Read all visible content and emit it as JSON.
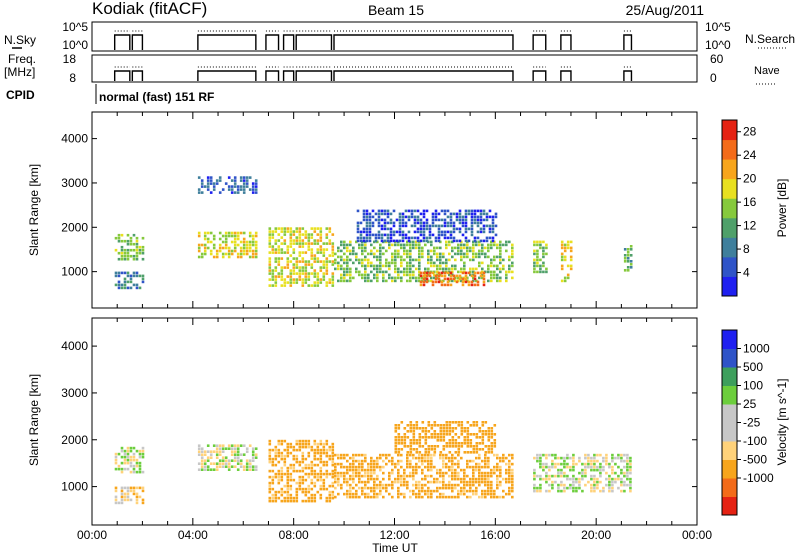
{
  "header": {
    "station": "Kodiak (fitACF)",
    "beam": "Beam 15",
    "date": "25/Aug/2011"
  },
  "noise_panel": {
    "left_label": "N.Sky",
    "right_label": "N.Search",
    "left_ticks": [
      "10^5",
      "10^0"
    ],
    "right_ticks": [
      "10^5",
      "10^0"
    ]
  },
  "freq_panel": {
    "left_label_1": "Freq.",
    "left_label_2": "[MHz]",
    "right_label": "Nave",
    "left_ticks": [
      "18",
      "8"
    ],
    "right_ticks": [
      "60",
      "0"
    ]
  },
  "cpid": {
    "label": "CPID",
    "value": "normal (fast) 151 RF"
  },
  "time_axis": {
    "label": "Time UT",
    "ticks": [
      "00:00",
      "04:00",
      "08:00",
      "12:00",
      "16:00",
      "20:00",
      "00:00"
    ]
  },
  "colors": {
    "power": [
      "#1f20f0",
      "#2f54c8",
      "#3f7f9c",
      "#4fa06a",
      "#86c93c",
      "#e8e020",
      "#f7a51c",
      "#f36b19",
      "#e52213"
    ],
    "velocity": [
      "#e52213",
      "#f36b19",
      "#f7a51c",
      "#ffd27a",
      "#c7c7c7",
      "#c7c7c7",
      "#6cce3c",
      "#3d9f5c",
      "#2f54c8",
      "#1f20f0"
    ]
  },
  "chart_data": [
    {
      "type": "heatmap",
      "title": "",
      "ylabel": "Slant Range [km]",
      "xlabel": "",
      "ylim": [
        180,
        4600
      ],
      "xlim": [
        0,
        24
      ],
      "yticks": [
        "1000",
        "2000",
        "3000",
        "4000"
      ],
      "xticks": [
        "00:00",
        "04:00",
        "08:00",
        "12:00",
        "16:00",
        "20:00",
        "00:00"
      ],
      "colorbar": {
        "label": "Power [dB]",
        "ticks": [
          "4",
          "8",
          "12",
          "16",
          "20",
          "24",
          "28"
        ],
        "range": [
          0,
          30
        ]
      },
      "data_intervals_hours": [
        [
          0.9,
          1.5
        ],
        [
          1.6,
          2.0
        ],
        [
          4.2,
          6.5
        ],
        [
          6.9,
          7.4
        ],
        [
          7.6,
          8.0
        ],
        [
          8.1,
          9.5
        ],
        [
          9.6,
          16.7
        ],
        [
          17.5,
          18.0
        ],
        [
          18.6,
          19.0
        ],
        [
          21.1,
          21.4
        ]
      ],
      "echo_regions": [
        {
          "t_start": 0.9,
          "t_end": 2.0,
          "range_min_km": 1300,
          "range_max_km": 1850,
          "power_db": 14
        },
        {
          "t_start": 0.9,
          "t_end": 2.0,
          "range_min_km": 650,
          "range_max_km": 1000,
          "power_db": 9
        },
        {
          "t_start": 4.2,
          "t_end": 6.5,
          "range_min_km": 1350,
          "range_max_km": 1900,
          "power_db": 18
        },
        {
          "t_start": 4.2,
          "t_end": 6.5,
          "range_min_km": 2800,
          "range_max_km": 3150,
          "power_db": 6
        },
        {
          "t_start": 7.0,
          "t_end": 9.5,
          "range_min_km": 700,
          "range_max_km": 2000,
          "power_db": 18
        },
        {
          "t_start": 9.6,
          "t_end": 16.7,
          "range_min_km": 800,
          "range_max_km": 1700,
          "power_db": 14
        },
        {
          "t_start": 10.5,
          "t_end": 16.0,
          "range_min_km": 1700,
          "range_max_km": 2400,
          "power_db": 5
        },
        {
          "t_start": 13.0,
          "t_end": 15.5,
          "range_min_km": 700,
          "range_max_km": 1000,
          "power_db": 24
        },
        {
          "t_start": 17.5,
          "t_end": 18.0,
          "range_min_km": 1000,
          "range_max_km": 1700,
          "power_db": 15
        },
        {
          "t_start": 18.6,
          "t_end": 19.0,
          "range_min_km": 800,
          "range_max_km": 1700,
          "power_db": 19
        },
        {
          "t_start": 21.1,
          "t_end": 21.4,
          "range_min_km": 1000,
          "range_max_km": 1600,
          "power_db": 13
        }
      ]
    },
    {
      "type": "heatmap",
      "title": "",
      "ylabel": "Slant Range [km]",
      "xlabel": "Time UT",
      "ylim": [
        180,
        4600
      ],
      "xlim": [
        0,
        24
      ],
      "yticks": [
        "1000",
        "2000",
        "3000",
        "4000"
      ],
      "xticks": [
        "00:00",
        "04:00",
        "08:00",
        "12:00",
        "16:00",
        "20:00",
        "00:00"
      ],
      "colorbar": {
        "label": "Velocity [m s^-1]",
        "ticks": [
          "1000",
          "500",
          "100",
          "25",
          "-25",
          "-100",
          "-500",
          "-1000"
        ],
        "range": [
          -1200,
          1200
        ]
      },
      "echo_regions": [
        {
          "t_start": 0.9,
          "t_end": 2.0,
          "range_min_km": 1300,
          "range_max_km": 1850,
          "velocity": 0
        },
        {
          "t_start": 0.9,
          "t_end": 2.0,
          "range_min_km": 650,
          "range_max_km": 1000,
          "velocity": -60
        },
        {
          "t_start": 4.2,
          "t_end": 6.5,
          "range_min_km": 1350,
          "range_max_km": 1900,
          "velocity": 0
        },
        {
          "t_start": 7.0,
          "t_end": 9.5,
          "range_min_km": 700,
          "range_max_km": 2000,
          "velocity": -150
        },
        {
          "t_start": 9.6,
          "t_end": 16.7,
          "range_min_km": 800,
          "range_max_km": 1700,
          "velocity": -150
        },
        {
          "t_start": 12.0,
          "t_end": 16.0,
          "range_min_km": 1700,
          "range_max_km": 2400,
          "velocity": -400
        },
        {
          "t_start": 17.5,
          "t_end": 21.4,
          "range_min_km": 900,
          "range_max_km": 1700,
          "velocity": 0
        }
      ]
    }
  ]
}
